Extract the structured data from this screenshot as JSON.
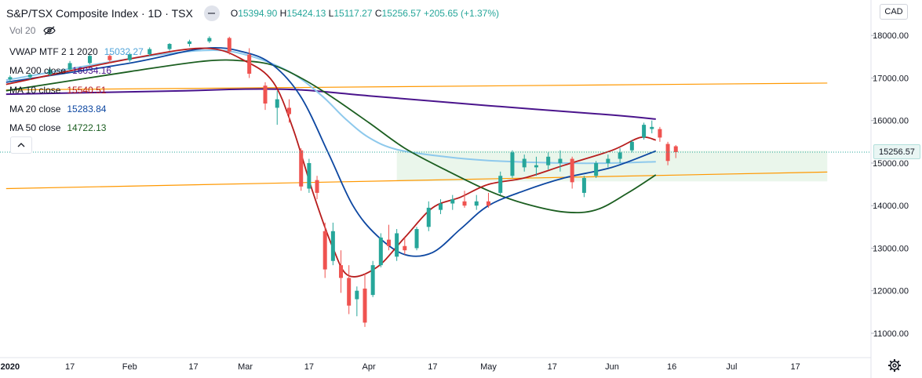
{
  "header": {
    "title": "S&P/TSX Composite Index · 1D · TSX",
    "ohlc": [
      {
        "k": "O",
        "v": "15394.90"
      },
      {
        "k": "H",
        "v": "15424.13"
      },
      {
        "k": "L",
        "v": "15117.27"
      },
      {
        "k": "C",
        "v": "15256.57"
      }
    ],
    "change": "+205.65 (+1.37%)",
    "volume_label": "Vol 20"
  },
  "currency": "CAD",
  "legend": [
    {
      "name": "VWAP MTF 2 1 2020",
      "value": "15032.27",
      "color": "#4fa3d9"
    },
    {
      "name": "MA 200 close",
      "value": "16034.16",
      "color": "#4a148c"
    },
    {
      "name": "MA 10 close",
      "value": "15540.51",
      "color": "#b71c1c"
    },
    {
      "name": "MA 20 close",
      "value": "15283.84",
      "color": "#0d47a1"
    },
    {
      "name": "MA 50 close",
      "value": "14722.13",
      "color": "#1b5e20"
    }
  ],
  "last_price_label": "15256.57",
  "colors": {
    "up": "#26a69a",
    "down": "#ef5350",
    "ma200": "#4a148c",
    "ma10": "#b71c1c",
    "ma20": "#0d47a1",
    "ma50": "#1b5e20",
    "vwap": "#8ec9ec",
    "trendline": "#ff9800",
    "zone": "#e8f5e9"
  },
  "icons": [
    "eye-icon",
    "eye-crossed-icon",
    "chevron-up-icon",
    "gear-icon"
  ],
  "chart_data": {
    "type": "candlestick",
    "title": "S&P/TSX Composite Index",
    "interval": "1D",
    "exchange": "TSX",
    "currency": "CAD",
    "x_start": "2020-01-02",
    "x_end": "2020-07-25",
    "x_tick_labels": [
      {
        "date": "2020-01-02",
        "label": "2020"
      },
      {
        "date": "2020-01-17",
        "label": "17"
      },
      {
        "date": "2020-02-01",
        "label": "Feb"
      },
      {
        "date": "2020-02-17",
        "label": "17"
      },
      {
        "date": "2020-03-01",
        "label": "Mar"
      },
      {
        "date": "2020-03-17",
        "label": "17"
      },
      {
        "date": "2020-04-01",
        "label": "Apr"
      },
      {
        "date": "2020-04-17",
        "label": "17"
      },
      {
        "date": "2020-05-01",
        "label": "May"
      },
      {
        "date": "2020-05-17",
        "label": "17"
      },
      {
        "date": "2020-06-01",
        "label": "Jun"
      },
      {
        "date": "2020-06-16",
        "label": "16"
      },
      {
        "date": "2020-07-01",
        "label": "Jul"
      },
      {
        "date": "2020-07-17",
        "label": "17"
      }
    ],
    "ylim": [
      10700,
      18280
    ],
    "y_ticks": [
      11000,
      12000,
      13000,
      14000,
      15000,
      16000,
      17000,
      18000
    ],
    "y_tick_labels": [
      "11000.00",
      "12000.00",
      "13000.00",
      "14000.00",
      "15000.00",
      "16000.00",
      "17000.00",
      "18000.00"
    ],
    "last_price": 15256.57,
    "highlight_zone": {
      "x_start": "2020-04-08",
      "x_end": "2020-07-25",
      "y_low": 14570,
      "y_high": 15290
    },
    "trendlines": [
      {
        "name": "upper",
        "points": [
          {
            "date": "2020-01-01",
            "y": 16720
          },
          {
            "date": "2020-07-25",
            "y": 16880
          }
        ]
      },
      {
        "name": "lower",
        "points": [
          {
            "date": "2020-01-01",
            "y": 14400
          },
          {
            "date": "2020-07-25",
            "y": 14790
          }
        ]
      }
    ],
    "series": [
      {
        "name": "MA 200 close",
        "kind": "line",
        "points": [
          {
            "date": "2020-01-01",
            "y": 16620
          },
          {
            "date": "2020-02-15",
            "y": 16700
          },
          {
            "date": "2020-03-01",
            "y": 16740
          },
          {
            "date": "2020-03-15",
            "y": 16720
          },
          {
            "date": "2020-04-01",
            "y": 16580
          },
          {
            "date": "2020-05-01",
            "y": 16350
          },
          {
            "date": "2020-06-01",
            "y": 16130
          },
          {
            "date": "2020-06-12",
            "y": 16034
          }
        ]
      },
      {
        "name": "VWAP MTF 2 1 2020",
        "kind": "line",
        "points": [
          {
            "date": "2020-01-01",
            "y": 16950
          },
          {
            "date": "2020-02-01",
            "y": 17450
          },
          {
            "date": "2020-02-20",
            "y": 17650
          },
          {
            "date": "2020-03-01",
            "y": 17550
          },
          {
            "date": "2020-03-12",
            "y": 17150
          },
          {
            "date": "2020-03-20",
            "y": 16600
          },
          {
            "date": "2020-03-26",
            "y": 16050
          },
          {
            "date": "2020-04-01",
            "y": 15600
          },
          {
            "date": "2020-04-08",
            "y": 15320
          },
          {
            "date": "2020-04-20",
            "y": 15150
          },
          {
            "date": "2020-05-01",
            "y": 15060
          },
          {
            "date": "2020-05-20",
            "y": 15000
          },
          {
            "date": "2020-06-01",
            "y": 15000
          },
          {
            "date": "2020-06-12",
            "y": 15032
          }
        ]
      },
      {
        "name": "MA 50 close",
        "kind": "line",
        "points": [
          {
            "date": "2020-01-01",
            "y": 16700
          },
          {
            "date": "2020-02-01",
            "y": 17150
          },
          {
            "date": "2020-02-20",
            "y": 17400
          },
          {
            "date": "2020-03-01",
            "y": 17400
          },
          {
            "date": "2020-03-08",
            "y": 17300
          },
          {
            "date": "2020-03-15",
            "y": 17000
          },
          {
            "date": "2020-03-22",
            "y": 16600
          },
          {
            "date": "2020-04-01",
            "y": 15950
          },
          {
            "date": "2020-04-10",
            "y": 15350
          },
          {
            "date": "2020-04-20",
            "y": 14850
          },
          {
            "date": "2020-05-01",
            "y": 14350
          },
          {
            "date": "2020-05-10",
            "y": 14050
          },
          {
            "date": "2020-05-20",
            "y": 13850
          },
          {
            "date": "2020-05-28",
            "y": 13900
          },
          {
            "date": "2020-06-05",
            "y": 14300
          },
          {
            "date": "2020-06-12",
            "y": 14722
          }
        ]
      },
      {
        "name": "MA 20 close",
        "kind": "line",
        "points": [
          {
            "date": "2020-01-01",
            "y": 16900
          },
          {
            "date": "2020-02-01",
            "y": 17350
          },
          {
            "date": "2020-02-20",
            "y": 17700
          },
          {
            "date": "2020-03-01",
            "y": 17600
          },
          {
            "date": "2020-03-08",
            "y": 17300
          },
          {
            "date": "2020-03-15",
            "y": 16550
          },
          {
            "date": "2020-03-22",
            "y": 15200
          },
          {
            "date": "2020-03-28",
            "y": 14000
          },
          {
            "date": "2020-04-03",
            "y": 13300
          },
          {
            "date": "2020-04-10",
            "y": 12850
          },
          {
            "date": "2020-04-17",
            "y": 12900
          },
          {
            "date": "2020-04-24",
            "y": 13450
          },
          {
            "date": "2020-05-01",
            "y": 14000
          },
          {
            "date": "2020-05-10",
            "y": 14350
          },
          {
            "date": "2020-05-20",
            "y": 14650
          },
          {
            "date": "2020-06-01",
            "y": 14900
          },
          {
            "date": "2020-06-12",
            "y": 15284
          }
        ]
      },
      {
        "name": "MA 10 close",
        "kind": "line",
        "points": [
          {
            "date": "2020-01-01",
            "y": 16850
          },
          {
            "date": "2020-02-01",
            "y": 17450
          },
          {
            "date": "2020-02-20",
            "y": 17700
          },
          {
            "date": "2020-03-01",
            "y": 17400
          },
          {
            "date": "2020-03-08",
            "y": 16900
          },
          {
            "date": "2020-03-13",
            "y": 15800
          },
          {
            "date": "2020-03-18",
            "y": 14300
          },
          {
            "date": "2020-03-23",
            "y": 13000
          },
          {
            "date": "2020-03-27",
            "y": 12350
          },
          {
            "date": "2020-04-03",
            "y": 12550
          },
          {
            "date": "2020-04-10",
            "y": 13250
          },
          {
            "date": "2020-04-17",
            "y": 13950
          },
          {
            "date": "2020-04-24",
            "y": 14200
          },
          {
            "date": "2020-05-01",
            "y": 14500
          },
          {
            "date": "2020-05-10",
            "y": 14650
          },
          {
            "date": "2020-05-20",
            "y": 14950
          },
          {
            "date": "2020-06-01",
            "y": 15300
          },
          {
            "date": "2020-06-08",
            "y": 15600
          },
          {
            "date": "2020-06-12",
            "y": 15541
          }
        ]
      },
      {
        "name": "Price",
        "kind": "candles",
        "candles": [
          {
            "date": "2020-01-02",
            "open": 16970,
            "high": 17060,
            "low": 16900,
            "close": 17020
          },
          {
            "date": "2020-01-07",
            "open": 17020,
            "high": 17110,
            "low": 16960,
            "close": 17080
          },
          {
            "date": "2020-01-12",
            "open": 17080,
            "high": 17230,
            "low": 17050,
            "close": 17200
          },
          {
            "date": "2020-01-17",
            "open": 17200,
            "high": 17400,
            "low": 17180,
            "close": 17350
          },
          {
            "date": "2020-01-22",
            "open": 17350,
            "high": 17560,
            "low": 17320,
            "close": 17520
          },
          {
            "date": "2020-01-27",
            "open": 17520,
            "high": 17560,
            "low": 17350,
            "close": 17420
          },
          {
            "date": "2020-02-01",
            "open": 17420,
            "high": 17600,
            "low": 17380,
            "close": 17560
          },
          {
            "date": "2020-02-06",
            "open": 17560,
            "high": 17720,
            "low": 17520,
            "close": 17680
          },
          {
            "date": "2020-02-11",
            "open": 17680,
            "high": 17820,
            "low": 17640,
            "close": 17800
          },
          {
            "date": "2020-02-16",
            "open": 17800,
            "high": 17900,
            "low": 17740,
            "close": 17860
          },
          {
            "date": "2020-02-21",
            "open": 17860,
            "high": 17980,
            "low": 17820,
            "close": 17940
          },
          {
            "date": "2020-02-26",
            "open": 17940,
            "high": 17970,
            "low": 17550,
            "close": 17620
          },
          {
            "date": "2020-03-02",
            "open": 17550,
            "high": 17700,
            "low": 17000,
            "close": 17100
          },
          {
            "date": "2020-03-06",
            "open": 16820,
            "high": 16900,
            "low": 16250,
            "close": 16400
          },
          {
            "date": "2020-03-09",
            "open": 16300,
            "high": 16700,
            "low": 15900,
            "close": 16500
          },
          {
            "date": "2020-03-12",
            "open": 16300,
            "high": 16500,
            "low": 15950,
            "close": 16150
          },
          {
            "date": "2020-03-15",
            "open": 15300,
            "high": 15350,
            "low": 14350,
            "close": 14450
          },
          {
            "date": "2020-03-17",
            "open": 14400,
            "high": 15100,
            "low": 14300,
            "close": 15000
          },
          {
            "date": "2020-03-19",
            "open": 14600,
            "high": 14700,
            "low": 14150,
            "close": 14300
          },
          {
            "date": "2020-03-21",
            "open": 13400,
            "high": 13600,
            "low": 12300,
            "close": 12500
          },
          {
            "date": "2020-03-23",
            "open": 12700,
            "high": 13600,
            "low": 12600,
            "close": 13400
          },
          {
            "date": "2020-03-25",
            "open": 12600,
            "high": 12950,
            "low": 11950,
            "close": 12300
          },
          {
            "date": "2020-03-27",
            "open": 12300,
            "high": 12600,
            "low": 11450,
            "close": 11650
          },
          {
            "date": "2020-03-29",
            "open": 11800,
            "high": 12100,
            "low": 11400,
            "close": 12000
          },
          {
            "date": "2020-03-31",
            "open": 12050,
            "high": 12400,
            "low": 11150,
            "close": 11250
          },
          {
            "date": "2020-04-02",
            "open": 11900,
            "high": 12700,
            "low": 11850,
            "close": 12600
          },
          {
            "date": "2020-04-04",
            "open": 12600,
            "high": 13350,
            "low": 12550,
            "close": 13250
          },
          {
            "date": "2020-04-06",
            "open": 13200,
            "high": 13550,
            "low": 12950,
            "close": 13050
          },
          {
            "date": "2020-04-08",
            "open": 12800,
            "high": 13450,
            "low": 12700,
            "close": 13350
          },
          {
            "date": "2020-04-10",
            "open": 13050,
            "high": 13250,
            "low": 12850,
            "close": 12950
          },
          {
            "date": "2020-04-13",
            "open": 13000,
            "high": 13500,
            "low": 12950,
            "close": 13450
          },
          {
            "date": "2020-04-16",
            "open": 13500,
            "high": 14100,
            "low": 13400,
            "close": 13950
          },
          {
            "date": "2020-04-19",
            "open": 13900,
            "high": 14150,
            "low": 13800,
            "close": 14050
          },
          {
            "date": "2020-04-22",
            "open": 14050,
            "high": 14250,
            "low": 13900,
            "close": 14150
          },
          {
            "date": "2020-04-25",
            "open": 14100,
            "high": 14350,
            "low": 13950,
            "close": 14000
          },
          {
            "date": "2020-04-28",
            "open": 14000,
            "high": 14250,
            "low": 13900,
            "close": 14100
          },
          {
            "date": "2020-05-01",
            "open": 14100,
            "high": 14300,
            "low": 13950,
            "close": 14000
          },
          {
            "date": "2020-05-04",
            "open": 14300,
            "high": 14800,
            "low": 14250,
            "close": 14700
          },
          {
            "date": "2020-05-07",
            "open": 14700,
            "high": 15300,
            "low": 14650,
            "close": 15250
          },
          {
            "date": "2020-05-10",
            "open": 14900,
            "high": 15200,
            "low": 14800,
            "close": 15100
          },
          {
            "date": "2020-05-13",
            "open": 14900,
            "high": 15150,
            "low": 14700,
            "close": 14950
          },
          {
            "date": "2020-05-16",
            "open": 14950,
            "high": 15250,
            "low": 14850,
            "close": 15150
          },
          {
            "date": "2020-05-19",
            "open": 15000,
            "high": 15300,
            "low": 14800,
            "close": 15100
          },
          {
            "date": "2020-05-22",
            "open": 15100,
            "high": 15150,
            "low": 14400,
            "close": 14550
          },
          {
            "date": "2020-05-25",
            "open": 14300,
            "high": 14700,
            "low": 14200,
            "close": 14650
          },
          {
            "date": "2020-05-28",
            "open": 14700,
            "high": 15050,
            "low": 14650,
            "close": 15000
          },
          {
            "date": "2020-05-31",
            "open": 15000,
            "high": 15200,
            "low": 14900,
            "close": 15100
          },
          {
            "date": "2020-06-03",
            "open": 15100,
            "high": 15350,
            "low": 15000,
            "close": 15250
          },
          {
            "date": "2020-06-06",
            "open": 15300,
            "high": 15550,
            "low": 15250,
            "close": 15500
          },
          {
            "date": "2020-06-09",
            "open": 15600,
            "high": 15950,
            "low": 15550,
            "close": 15900
          },
          {
            "date": "2020-06-11",
            "open": 15800,
            "high": 16000,
            "low": 15700,
            "close": 15850
          },
          {
            "date": "2020-06-13",
            "open": 15800,
            "high": 15850,
            "low": 15500,
            "close": 15600
          },
          {
            "date": "2020-06-15",
            "open": 15450,
            "high": 15500,
            "low": 14950,
            "close": 15050
          },
          {
            "date": "2020-06-17",
            "open": 15395,
            "high": 15424,
            "low": 15117,
            "close": 15257
          }
        ]
      }
    ]
  }
}
